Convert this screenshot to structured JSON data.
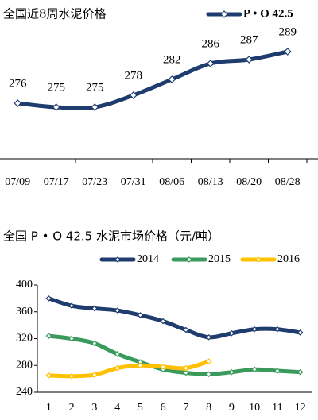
{
  "chart_data": [
    {
      "type": "line",
      "title": "全国近8周水泥价格",
      "categories": [
        "07/09",
        "07/17",
        "07/23",
        "07/31",
        "08/06",
        "08/13",
        "08/20",
        "08/28"
      ],
      "series": [
        {
          "name": "P • O 42.5",
          "color": "#1f3c6e",
          "values": [
            276,
            275,
            275,
            278,
            282,
            286,
            287,
            289
          ]
        }
      ],
      "ylim": [
        262,
        298
      ],
      "data_labels": true,
      "marker": "diamond"
    },
    {
      "type": "line",
      "title": "全国 P • O 42.5 水泥市场价格（元/吨）",
      "categories": [
        "1",
        "2",
        "3",
        "4",
        "5",
        "6",
        "7",
        "8",
        "9",
        "10",
        "11",
        "12"
      ],
      "series": [
        {
          "name": "2014",
          "color": "#1f3c6e",
          "values": [
            380,
            369,
            365,
            362,
            355,
            346,
            333,
            322,
            328,
            334,
            334,
            329
          ]
        },
        {
          "name": "2015",
          "color": "#3a9a5c",
          "values": [
            324,
            320,
            313,
            297,
            285,
            274,
            269,
            267,
            270,
            274,
            272,
            270
          ]
        },
        {
          "name": "2016",
          "color": "#ffc000",
          "values": [
            265,
            264,
            266,
            276,
            280,
            278,
            276,
            286,
            null,
            null,
            null,
            null
          ]
        }
      ],
      "ylim": [
        240,
        400
      ],
      "yticks": [
        240,
        280,
        320,
        360,
        400
      ],
      "marker": "diamond"
    }
  ]
}
